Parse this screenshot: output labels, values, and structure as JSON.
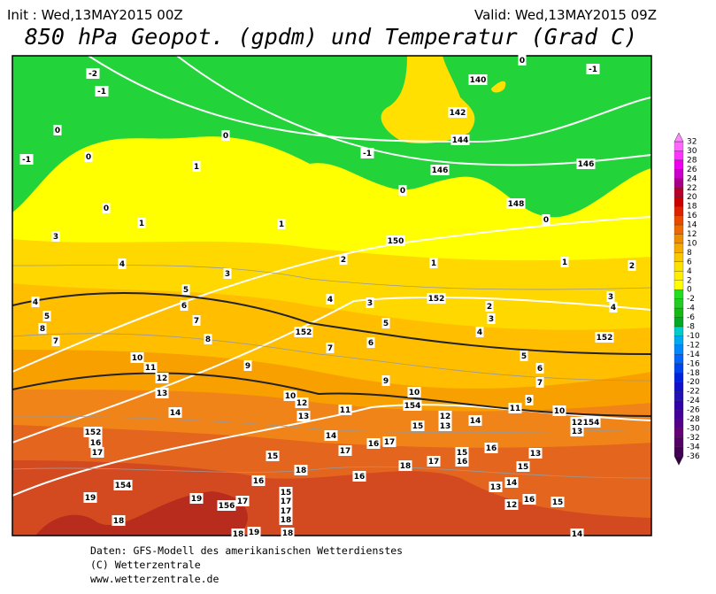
{
  "header": {
    "init": "Init : Wed,13MAY2015 00Z",
    "valid": "Valid: Wed,13MAY2015 09Z",
    "title": "850 hPa Geopot. (gpdm) und Temperatur (Grad C)"
  },
  "map": {
    "labels": [
      "-2",
      "-1",
      "0",
      "-1",
      "0",
      "0",
      "1",
      "0",
      "0",
      "-1",
      "146",
      "146",
      "144",
      "142",
      "140",
      "-1",
      "0",
      "148",
      "0",
      "1",
      "3",
      "1",
      "150",
      "2",
      "1",
      "1",
      "2",
      "4",
      "3",
      "5",
      "6",
      "4",
      "5",
      "8",
      "7",
      "7",
      "8",
      "4",
      "3",
      "152",
      "5",
      "152",
      "6",
      "7",
      "2",
      "3",
      "4",
      "3",
      "4",
      "152",
      "5",
      "6",
      "7",
      "9",
      "10",
      "11",
      "12",
      "13",
      "9",
      "10",
      "12",
      "10",
      "154",
      "13",
      "11",
      "14",
      "12",
      "13",
      "14",
      "15",
      "11",
      "9",
      "10",
      "12",
      "13",
      "154",
      "152",
      "16",
      "17",
      "14",
      "16",
      "17",
      "17",
      "15",
      "18",
      "18",
      "17",
      "15",
      "16",
      "16",
      "13",
      "15",
      "16",
      "16",
      "154",
      "19",
      "15",
      "17",
      "13",
      "14",
      "16",
      "12",
      "15",
      "19",
      "156",
      "17",
      "17",
      "18",
      "18",
      "19",
      "18",
      "18",
      "14"
    ]
  },
  "colorbar": {
    "labels": [
      32,
      30,
      28,
      26,
      24,
      22,
      20,
      18,
      16,
      14,
      12,
      10,
      8,
      6,
      4,
      2,
      0,
      -2,
      -4,
      -6,
      -8,
      -10,
      -12,
      -14,
      -16,
      -18,
      -20,
      -22,
      -24,
      -26,
      -28,
      -30,
      -32,
      -34,
      -36
    ]
  },
  "footer": {
    "lines": [
      "Daten: GFS-Modell des amerikanischen Wetterdienstes",
      "(C) Wetterzentrale",
      "www.wetterzentrale.de"
    ]
  }
}
